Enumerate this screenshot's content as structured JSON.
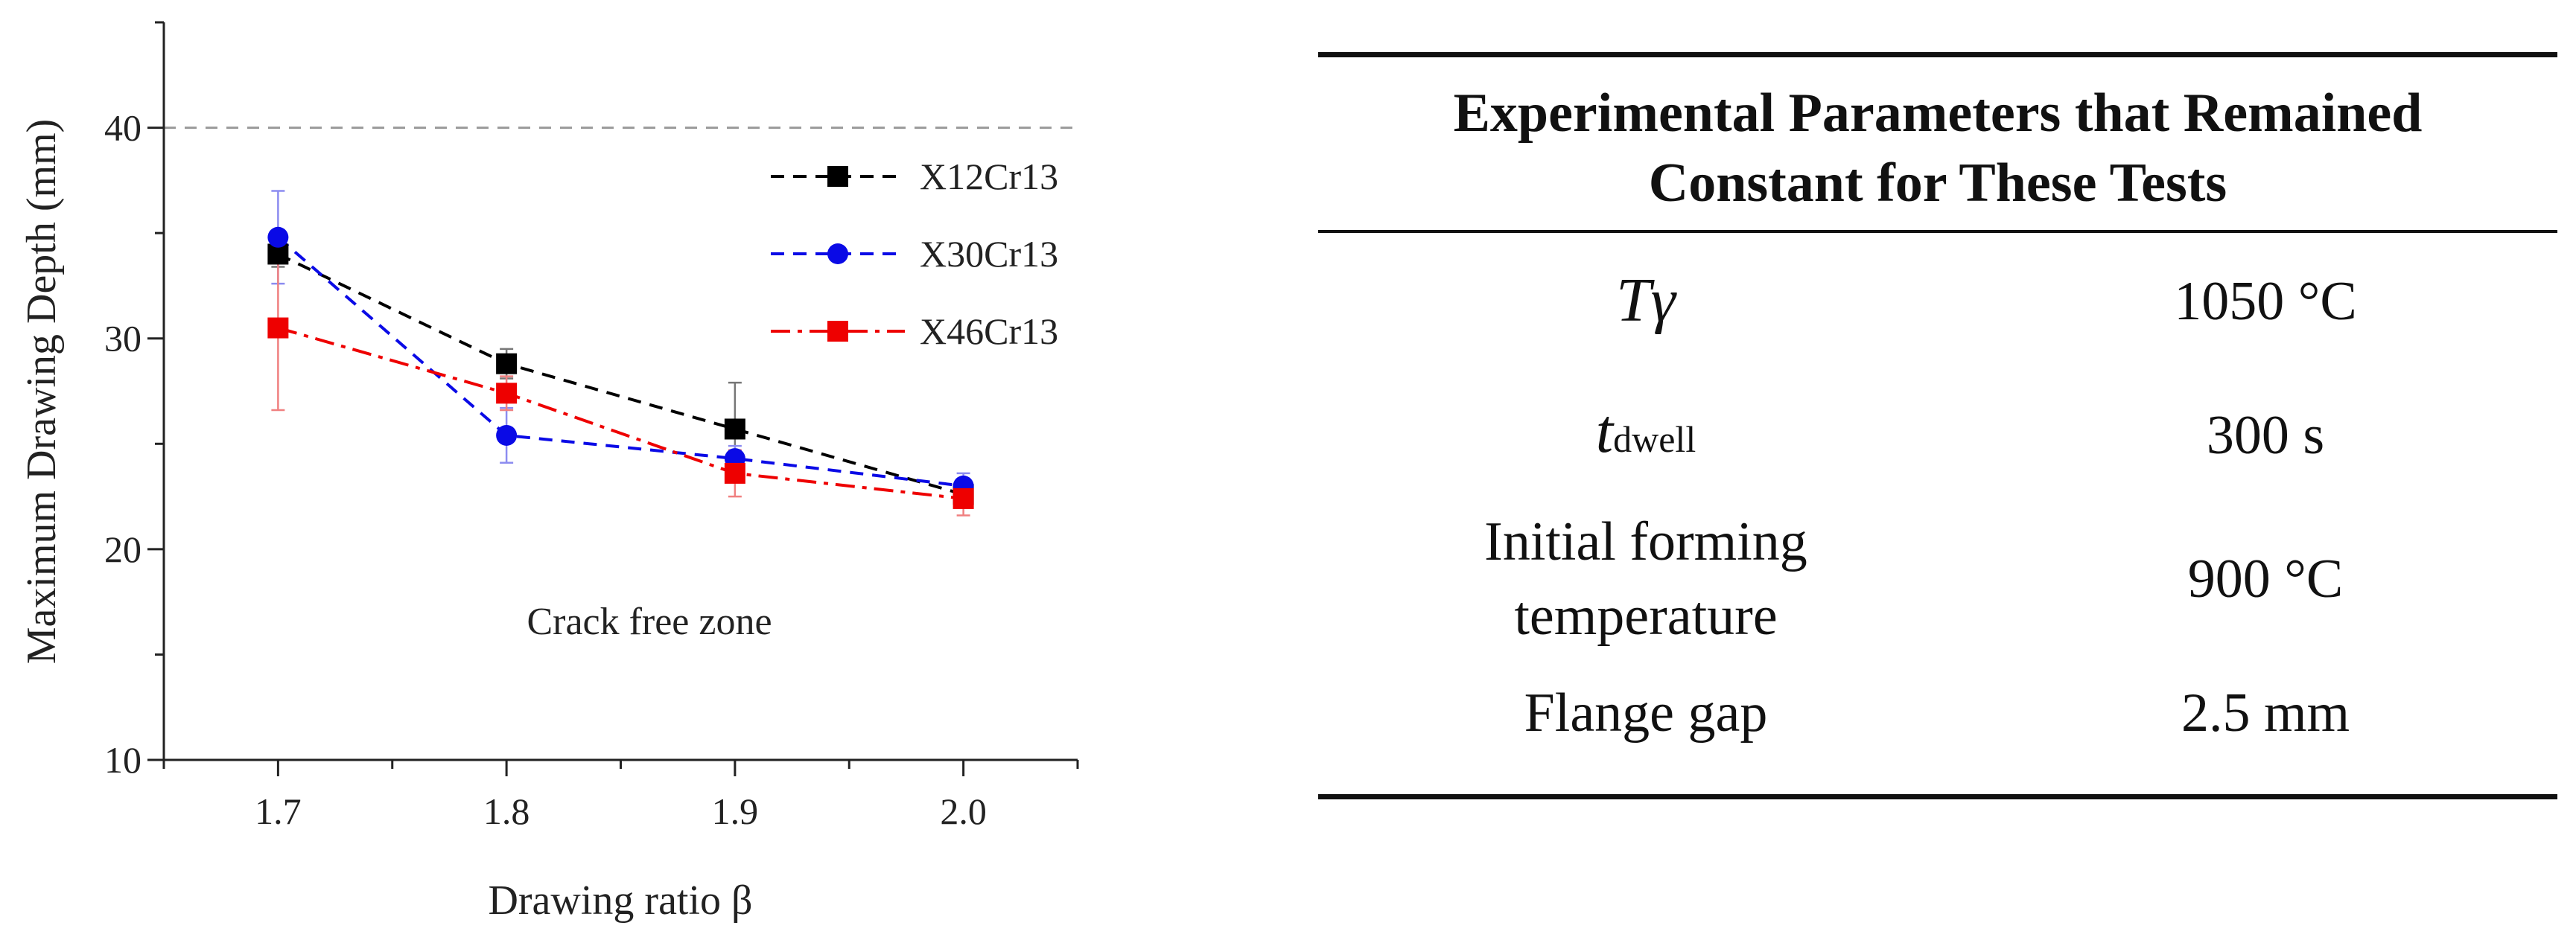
{
  "chart_data": {
    "type": "line",
    "title": "",
    "xlabel": "Drawing ratio β",
    "ylabel": "Maximum Drawing Depth (mm)",
    "xlim": [
      1.65,
      2.05
    ],
    "ylim": [
      10,
      45
    ],
    "x": [
      1.7,
      1.8,
      1.9,
      2.0
    ],
    "xticks": [
      "1.7",
      "1.8",
      "1.9",
      "2.0"
    ],
    "yticks": [
      "10",
      "20",
      "30",
      "40"
    ],
    "reference_line": 40,
    "annotation": "Crack free zone",
    "legend_position": "top-right",
    "series": [
      {
        "name": "X12Cr13",
        "color": "#000000",
        "marker": "square",
        "dash": "dashed",
        "values": [
          34.0,
          28.8,
          25.7,
          22.6
        ],
        "errors": [
          0.6,
          0.7,
          2.2,
          0.6
        ]
      },
      {
        "name": "X30Cr13",
        "color": "#0a0ae6",
        "marker": "circle",
        "dash": "dashed",
        "values": [
          34.8,
          25.4,
          24.3,
          23.0
        ],
        "errors": [
          2.2,
          1.3,
          0.6,
          0.6
        ]
      },
      {
        "name": "X46Cr13",
        "color": "#ee0000",
        "marker": "square",
        "dash": "dashdot",
        "values": [
          30.5,
          27.4,
          23.6,
          22.4
        ],
        "errors": [
          3.9,
          0.8,
          1.1,
          0.8
        ]
      }
    ]
  },
  "table": {
    "title_line1": "Experimental Parameters that Remained",
    "title_line2": "Constant for These Tests",
    "rows": [
      {
        "symbol": "T",
        "symbol2": "γ",
        "value": "1050 °C"
      },
      {
        "symbol": "t",
        "sub": "dwell",
        "value": "300 s"
      },
      {
        "name_line1": "Initial forming",
        "name_line2": "temperature",
        "value": "900 °C"
      },
      {
        "name": "Flange gap",
        "value": "2.5 mm"
      }
    ]
  }
}
